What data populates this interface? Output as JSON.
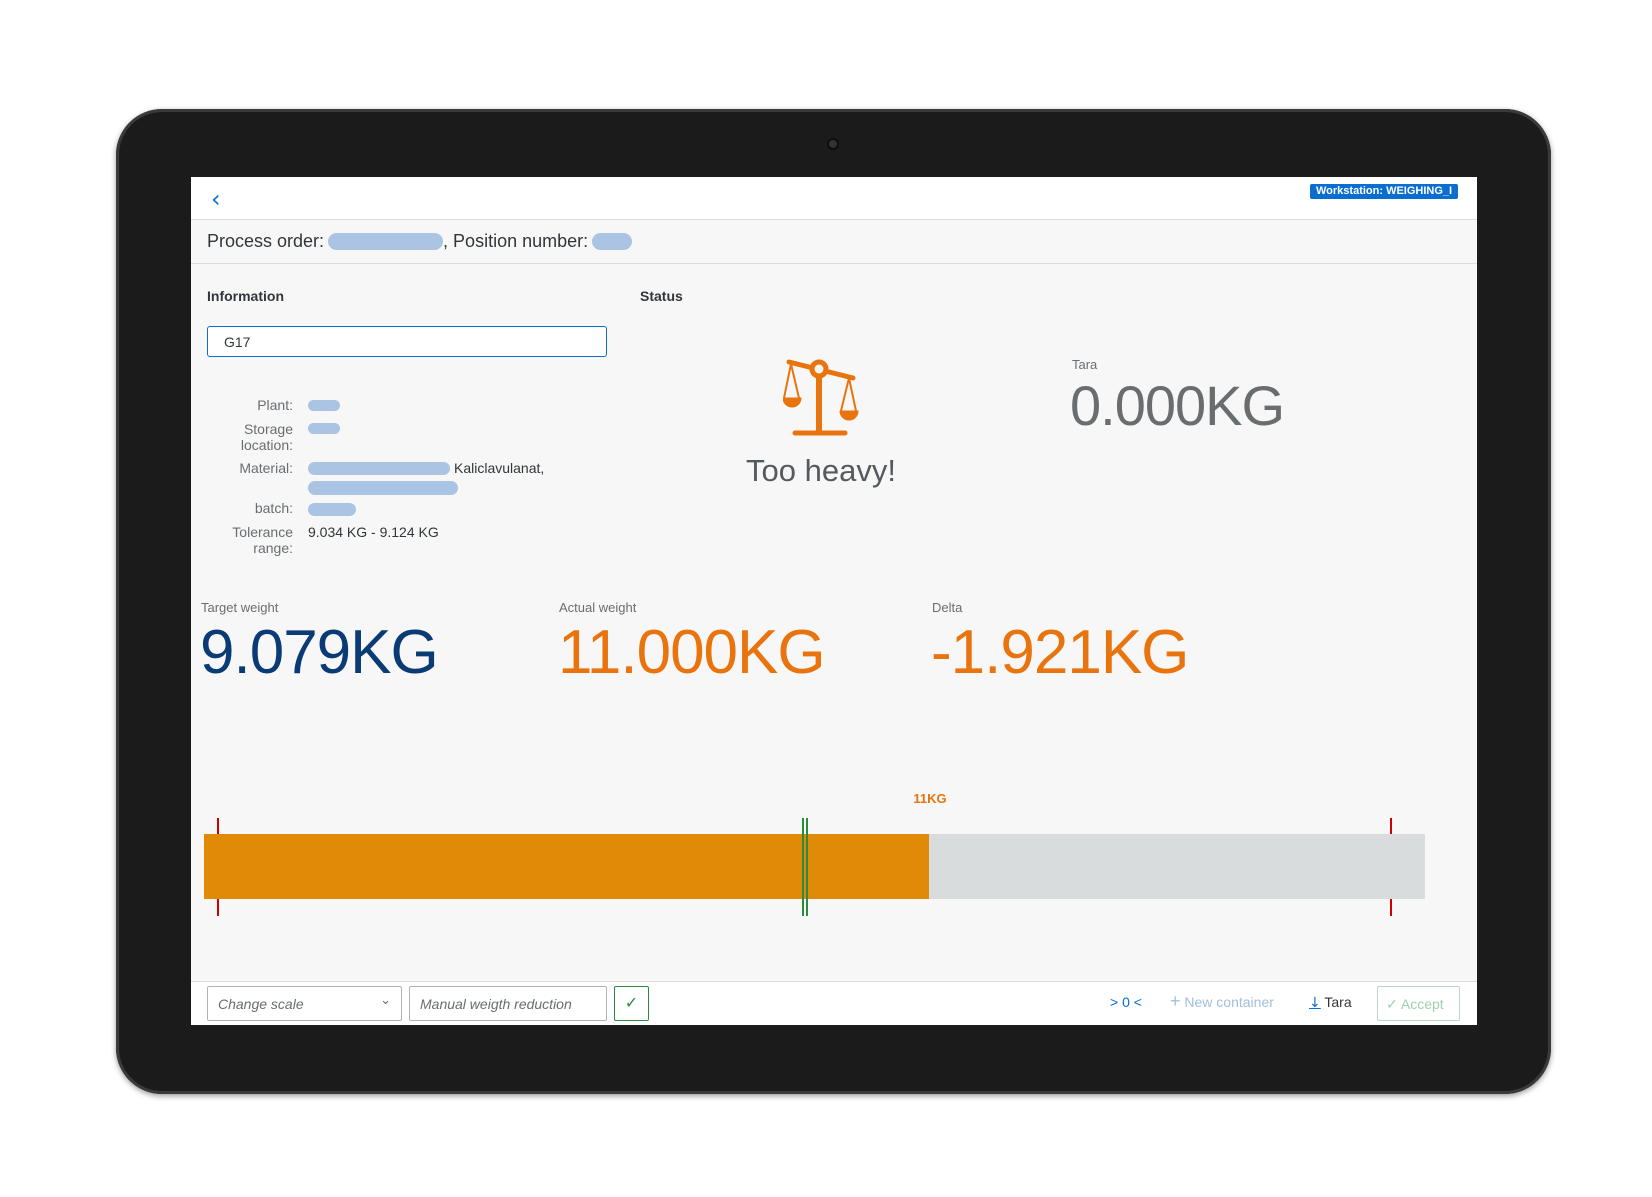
{
  "header": {
    "back_icon": "chevron-left-icon",
    "workstation": "Workstation: WEIGHING_I"
  },
  "subheader": {
    "process_order_label": "Process order:",
    "position_label": ", Position number:"
  },
  "information": {
    "title": "Information",
    "input_value": "G17",
    "rows": [
      {
        "label": "Plant:"
      },
      {
        "label": "Storage location:"
      },
      {
        "label": "Material:",
        "value": "Kaliclavulanat,"
      },
      {
        "label": "batch:"
      },
      {
        "label": "Tolerance range:",
        "value": "9.034 KG - 9.124 KG"
      }
    ]
  },
  "status": {
    "title": "Status",
    "icon": "scale-balance-icon",
    "text": "Too heavy!",
    "color": "#e9730c"
  },
  "tara": {
    "label": "Tara",
    "value": "0.000",
    "unit": "KG"
  },
  "weights": {
    "target": {
      "label": "Target weight",
      "value": "9.079",
      "unit": "KG",
      "color": "#0a3b74"
    },
    "actual": {
      "label": "Actual weight",
      "value": "11.000",
      "unit": "KG",
      "color": "#e9730c"
    },
    "delta": {
      "label": "Delta",
      "value": "-1.921",
      "unit": "KG",
      "color": "#e9730c"
    }
  },
  "gauge": {
    "current_label": "11KG",
    "actual_kg": 11,
    "target_kg": 9.079,
    "fill_percent": 59.4,
    "fill_color": "#e08a07",
    "track_color": "#d9dcdd"
  },
  "footer": {
    "change_scale": "Change scale",
    "manual_reduction_placeholder": "Manual weigth reduction",
    "zero": "> 0 <",
    "new_container": "New container",
    "tara": "Tara",
    "accept": "Accept"
  }
}
